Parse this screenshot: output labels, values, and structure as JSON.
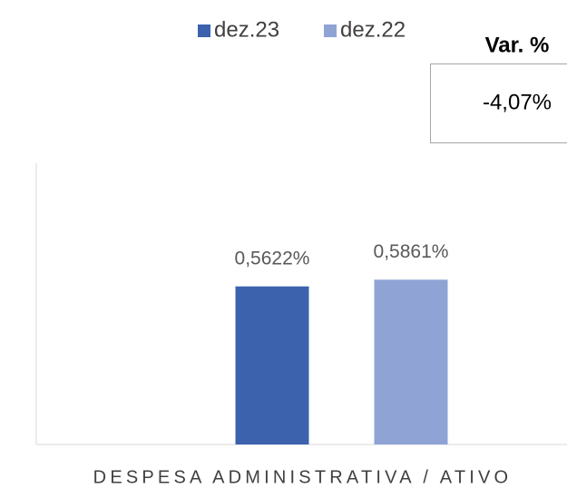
{
  "chart_data": {
    "type": "bar",
    "categories": [
      "DESPESA ADMINISTRATIVA / ATIVO"
    ],
    "series": [
      {
        "name": "dez.23",
        "color": "#3c62ad",
        "values": [
          0.5622
        ],
        "value_labels": [
          "0,5622%"
        ]
      },
      {
        "name": "dez.22",
        "color": "#8fa3d5",
        "values": [
          0.5861
        ],
        "value_labels": [
          "0,5861%"
        ]
      }
    ],
    "ylim": [
      0,
      1
    ],
    "legend": "top",
    "annotation": {
      "title": "Var. %",
      "text": "-4,07%"
    }
  }
}
